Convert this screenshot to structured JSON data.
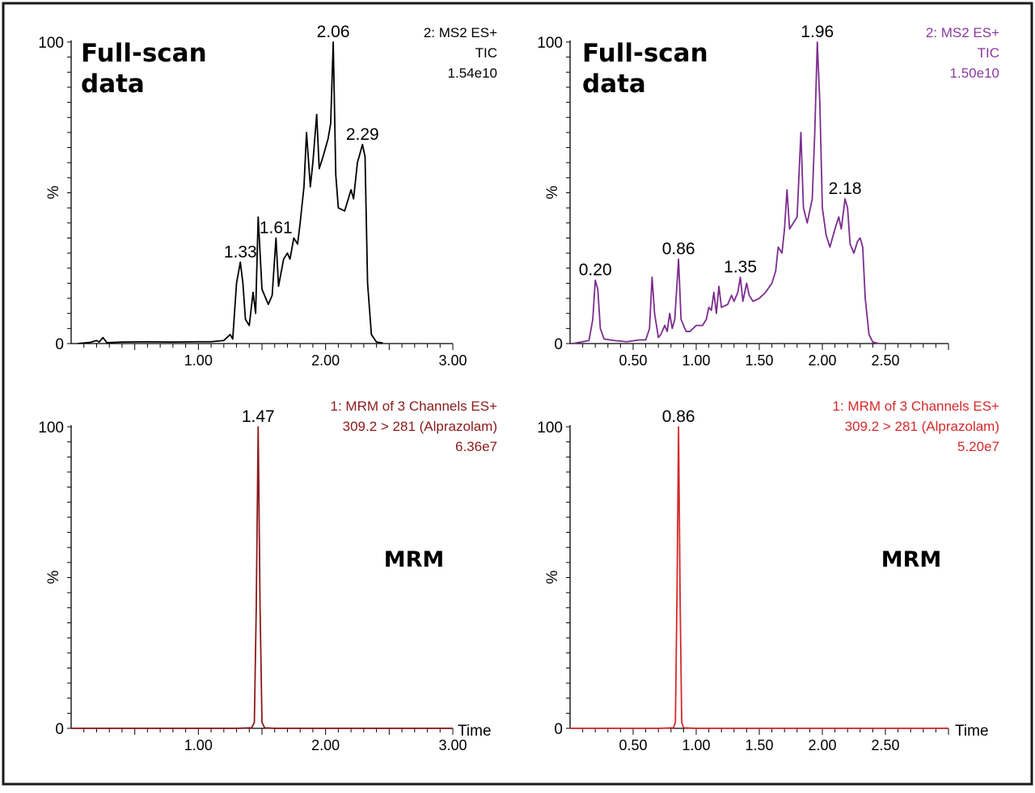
{
  "chart_data": [
    {
      "type": "line",
      "series": [
        {
          "name": "",
          "points": [
            [
              0.05,
              0
            ],
            [
              0.15,
              0.4
            ],
            [
              0.2,
              1.0
            ],
            [
              0.22,
              0.5
            ],
            [
              0.25,
              2.0
            ],
            [
              0.28,
              0.3
            ],
            [
              0.4,
              0.5
            ],
            [
              0.6,
              0.6
            ],
            [
              0.8,
              0.5
            ],
            [
              1.0,
              0.6
            ],
            [
              1.1,
              0.6
            ],
            [
              1.2,
              1.0
            ],
            [
              1.25,
              3.0
            ],
            [
              1.27,
              1.5
            ],
            [
              1.3,
              20
            ],
            [
              1.33,
              27
            ],
            [
              1.35,
              20
            ],
            [
              1.37,
              8
            ],
            [
              1.4,
              6
            ],
            [
              1.43,
              17
            ],
            [
              1.45,
              10
            ],
            [
              1.47,
              42
            ],
            [
              1.5,
              18
            ],
            [
              1.55,
              13
            ],
            [
              1.58,
              16
            ],
            [
              1.61,
              35
            ],
            [
              1.63,
              19
            ],
            [
              1.67,
              28
            ],
            [
              1.7,
              30
            ],
            [
              1.72,
              28
            ],
            [
              1.75,
              35
            ],
            [
              1.78,
              33
            ],
            [
              1.8,
              40
            ],
            [
              1.83,
              52
            ],
            [
              1.85,
              70
            ],
            [
              1.88,
              52
            ],
            [
              1.9,
              60
            ],
            [
              1.93,
              76
            ],
            [
              1.95,
              58
            ],
            [
              1.98,
              62
            ],
            [
              2.02,
              68
            ],
            [
              2.04,
              73
            ],
            [
              2.06,
              100
            ],
            [
              2.08,
              56
            ],
            [
              2.1,
              45
            ],
            [
              2.15,
              44
            ],
            [
              2.2,
              51
            ],
            [
              2.22,
              48
            ],
            [
              2.25,
              60
            ],
            [
              2.27,
              63
            ],
            [
              2.29,
              66
            ],
            [
              2.31,
              62
            ],
            [
              2.33,
              20
            ],
            [
              2.36,
              3
            ],
            [
              2.4,
              0.5
            ],
            [
              2.45,
              0.2
            ]
          ]
        }
      ],
      "peak_labels": [
        {
          "x": 1.33,
          "y": 27,
          "label": "1.33"
        },
        {
          "x": 1.61,
          "y": 35,
          "label": "1.61"
        },
        {
          "x": 2.06,
          "y": 100,
          "label": "2.06"
        },
        {
          "x": 2.29,
          "y": 66,
          "label": "2.29"
        }
      ],
      "info_lines": [
        "2: MS2 ES+",
        "TIC",
        "1.54e10"
      ],
      "big_label": [
        "Full-scan",
        "data"
      ],
      "ylabel": "%",
      "xlabel": "",
      "xlim": [
        0.0,
        3.0
      ],
      "ylim": [
        0,
        100
      ],
      "xticks": [
        {
          "v": 1.0,
          "l": "1.00"
        },
        {
          "v": 2.0,
          "l": "2.00"
        },
        {
          "v": 3.0,
          "l": "3.00"
        }
      ],
      "yticks": [
        {
          "v": 0,
          "l": "0"
        },
        {
          "v": 100,
          "l": "100"
        }
      ],
      "minor_x_step": 0.1,
      "minor_y_step": 5,
      "color": "#000000",
      "info_color": "#000000"
    },
    {
      "type": "line",
      "series": [
        {
          "name": "",
          "points": [
            [
              0.02,
              0
            ],
            [
              0.1,
              0.6
            ],
            [
              0.15,
              1.0
            ],
            [
              0.18,
              8
            ],
            [
              0.2,
              21
            ],
            [
              0.22,
              18
            ],
            [
              0.24,
              5
            ],
            [
              0.27,
              1.5
            ],
            [
              0.35,
              1.0
            ],
            [
              0.45,
              0.6
            ],
            [
              0.55,
              1.2
            ],
            [
              0.6,
              1.2
            ],
            [
              0.63,
              5
            ],
            [
              0.65,
              22
            ],
            [
              0.67,
              10
            ],
            [
              0.7,
              2
            ],
            [
              0.72,
              3
            ],
            [
              0.75,
              6
            ],
            [
              0.77,
              4
            ],
            [
              0.79,
              10
            ],
            [
              0.81,
              5
            ],
            [
              0.83,
              8
            ],
            [
              0.86,
              28
            ],
            [
              0.88,
              8
            ],
            [
              0.92,
              4
            ],
            [
              0.95,
              4
            ],
            [
              1.0,
              6
            ],
            [
              1.05,
              6
            ],
            [
              1.08,
              8
            ],
            [
              1.1,
              12
            ],
            [
              1.12,
              11
            ],
            [
              1.14,
              17
            ],
            [
              1.16,
              10
            ],
            [
              1.18,
              19
            ],
            [
              1.2,
              12
            ],
            [
              1.25,
              13
            ],
            [
              1.28,
              16
            ],
            [
              1.3,
              14
            ],
            [
              1.33,
              17
            ],
            [
              1.35,
              22
            ],
            [
              1.37,
              14
            ],
            [
              1.4,
              20
            ],
            [
              1.42,
              16
            ],
            [
              1.45,
              14
            ],
            [
              1.5,
              15
            ],
            [
              1.55,
              17
            ],
            [
              1.6,
              20
            ],
            [
              1.63,
              24
            ],
            [
              1.65,
              32
            ],
            [
              1.68,
              30
            ],
            [
              1.7,
              38
            ],
            [
              1.72,
              51
            ],
            [
              1.74,
              38
            ],
            [
              1.77,
              40
            ],
            [
              1.8,
              42
            ],
            [
              1.83,
              70
            ],
            [
              1.85,
              45
            ],
            [
              1.88,
              40
            ],
            [
              1.92,
              48
            ],
            [
              1.94,
              70
            ],
            [
              1.96,
              100
            ],
            [
              1.98,
              80
            ],
            [
              2.0,
              45
            ],
            [
              2.03,
              36
            ],
            [
              2.06,
              32
            ],
            [
              2.1,
              38
            ],
            [
              2.13,
              42
            ],
            [
              2.15,
              38
            ],
            [
              2.18,
              48
            ],
            [
              2.2,
              45
            ],
            [
              2.22,
              33
            ],
            [
              2.25,
              30
            ],
            [
              2.28,
              34
            ],
            [
              2.3,
              35
            ],
            [
              2.32,
              32
            ],
            [
              2.34,
              15
            ],
            [
              2.37,
              3
            ],
            [
              2.4,
              0.5
            ],
            [
              2.45,
              0
            ]
          ]
        }
      ],
      "peak_labels": [
        {
          "x": 0.2,
          "y": 21,
          "label": "0.20"
        },
        {
          "x": 0.86,
          "y": 28,
          "label": "0.86"
        },
        {
          "x": 1.35,
          "y": 22,
          "label": "1.35"
        },
        {
          "x": 1.96,
          "y": 100,
          "label": "1.96"
        },
        {
          "x": 2.18,
          "y": 48,
          "label": "2.18"
        }
      ],
      "info_lines": [
        "2: MS2 ES+",
        "TIC",
        "1.50e10"
      ],
      "big_label": [
        "Full-scan",
        "data"
      ],
      "ylabel": "%",
      "xlabel": "",
      "xlim": [
        0.0,
        3.0
      ],
      "ylim": [
        0,
        100
      ],
      "xticks": [
        {
          "v": 0.5,
          "l": "0.50"
        },
        {
          "v": 1.0,
          "l": "1.00"
        },
        {
          "v": 1.5,
          "l": "1.50"
        },
        {
          "v": 2.0,
          "l": "2.00"
        },
        {
          "v": 2.5,
          "l": "2.50"
        }
      ],
      "yticks": [
        {
          "v": 0,
          "l": "0"
        },
        {
          "v": 100,
          "l": "100"
        }
      ],
      "minor_x_step": 0.1,
      "minor_y_step": 5,
      "color": "#7b2d8e",
      "info_color": "#8a3a9e"
    },
    {
      "type": "line",
      "series": [
        {
          "name": "",
          "points": [
            [
              0.0,
              0
            ],
            [
              1.3,
              0
            ],
            [
              1.42,
              0.2
            ],
            [
              1.44,
              2
            ],
            [
              1.455,
              40
            ],
            [
              1.47,
              100
            ],
            [
              1.485,
              40
            ],
            [
              1.5,
              2
            ],
            [
              1.52,
              0.2
            ],
            [
              1.6,
              0
            ],
            [
              3.0,
              0
            ]
          ]
        }
      ],
      "peak_labels": [
        {
          "x": 1.47,
          "y": 100,
          "label": "1.47"
        }
      ],
      "info_lines": [
        "1: MRM of 3 Channels ES+",
        "309.2 > 281 (Alprazolam)",
        "6.36e7"
      ],
      "big_label": [
        "MRM"
      ],
      "ylabel": "%",
      "xlabel": "Time",
      "xlim": [
        0.0,
        3.0
      ],
      "ylim": [
        0,
        100
      ],
      "xticks": [
        {
          "v": 1.0,
          "l": "1.00"
        },
        {
          "v": 2.0,
          "l": "2.00"
        },
        {
          "v": 3.0,
          "l": "3.00"
        }
      ],
      "yticks": [
        {
          "v": 0,
          "l": "0"
        },
        {
          "v": 100,
          "l": "100"
        }
      ],
      "minor_x_step": 0.1,
      "minor_y_step": 5,
      "color": "#8b1a1a",
      "info_color": "#8b1a1a"
    },
    {
      "type": "line",
      "series": [
        {
          "name": "",
          "points": [
            [
              0.0,
              0
            ],
            [
              0.7,
              0
            ],
            [
              0.82,
              0.2
            ],
            [
              0.835,
              2
            ],
            [
              0.848,
              45
            ],
            [
              0.86,
              100
            ],
            [
              0.872,
              45
            ],
            [
              0.885,
              2
            ],
            [
              0.9,
              0.2
            ],
            [
              1.0,
              0
            ],
            [
              3.0,
              0
            ]
          ]
        }
      ],
      "peak_labels": [
        {
          "x": 0.86,
          "y": 100,
          "label": "0.86"
        }
      ],
      "info_lines": [
        "1: MRM of 3 Channels ES+",
        "309.2 > 281 (Alprazolam)",
        "5.20e7"
      ],
      "big_label": [
        "MRM"
      ],
      "ylabel": "%",
      "xlabel": "Time",
      "xlim": [
        0.0,
        3.0
      ],
      "ylim": [
        0,
        100
      ],
      "xticks": [
        {
          "v": 0.5,
          "l": "0.50"
        },
        {
          "v": 1.0,
          "l": "1.00"
        },
        {
          "v": 1.5,
          "l": "1.50"
        },
        {
          "v": 2.0,
          "l": "2.00"
        },
        {
          "v": 2.5,
          "l": "2.50"
        }
      ],
      "yticks": [
        {
          "v": 0,
          "l": "0"
        },
        {
          "v": 100,
          "l": "100"
        }
      ],
      "minor_x_step": 0.1,
      "minor_y_step": 5,
      "color": "#d42a2a",
      "info_color": "#d42a2a"
    }
  ]
}
